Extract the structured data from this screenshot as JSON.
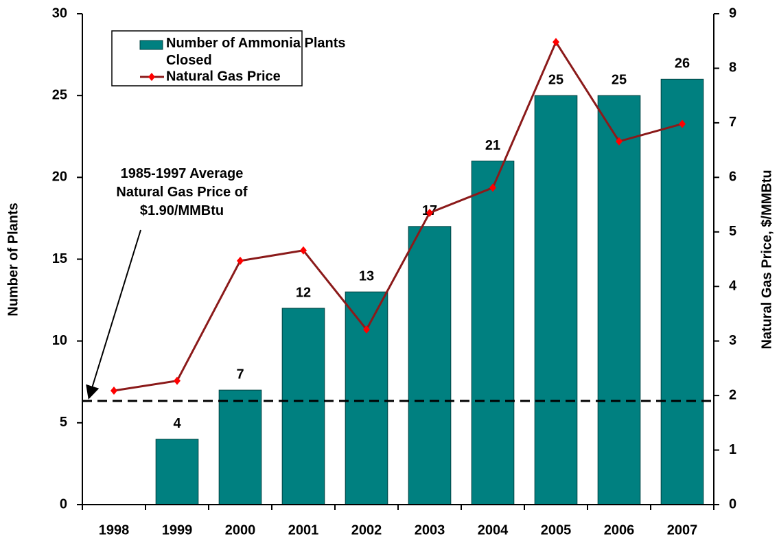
{
  "chart_data": {
    "type": "bar_line",
    "categories": [
      "1998",
      "1999",
      "2000",
      "2001",
      "2002",
      "2003",
      "2004",
      "2005",
      "2006",
      "2007"
    ],
    "series": [
      {
        "name": "Number of Ammonia Plants Closed",
        "color": "#008080",
        "values": [
          null,
          4,
          7,
          12,
          13,
          17,
          21,
          25,
          25,
          26
        ]
      },
      {
        "name": "Natural Gas Price",
        "color": "#8b1a1a",
        "marker_color": "#ff0000",
        "axis": "y2",
        "values": [
          2.09,
          2.27,
          4.47,
          4.66,
          3.21,
          5.35,
          5.81,
          8.48,
          6.66,
          6.98
        ]
      }
    ],
    "ylabel": "Number of Plants",
    "y2label": "Natural Gas Price, $/MMBtu",
    "ylim": [
      0,
      30
    ],
    "yticks": [
      0,
      5,
      10,
      15,
      20,
      25,
      30
    ],
    "y2lim": [
      0,
      9
    ],
    "y2ticks": [
      0,
      1,
      2,
      3,
      4,
      5,
      6,
      7,
      8,
      9
    ],
    "annotation": {
      "text": "1985-1997 Average Natural Gas Price of $1.90/MMBtu",
      "value": 1.9,
      "axis": "y2"
    },
    "legend": "upper left",
    "grid": false
  }
}
